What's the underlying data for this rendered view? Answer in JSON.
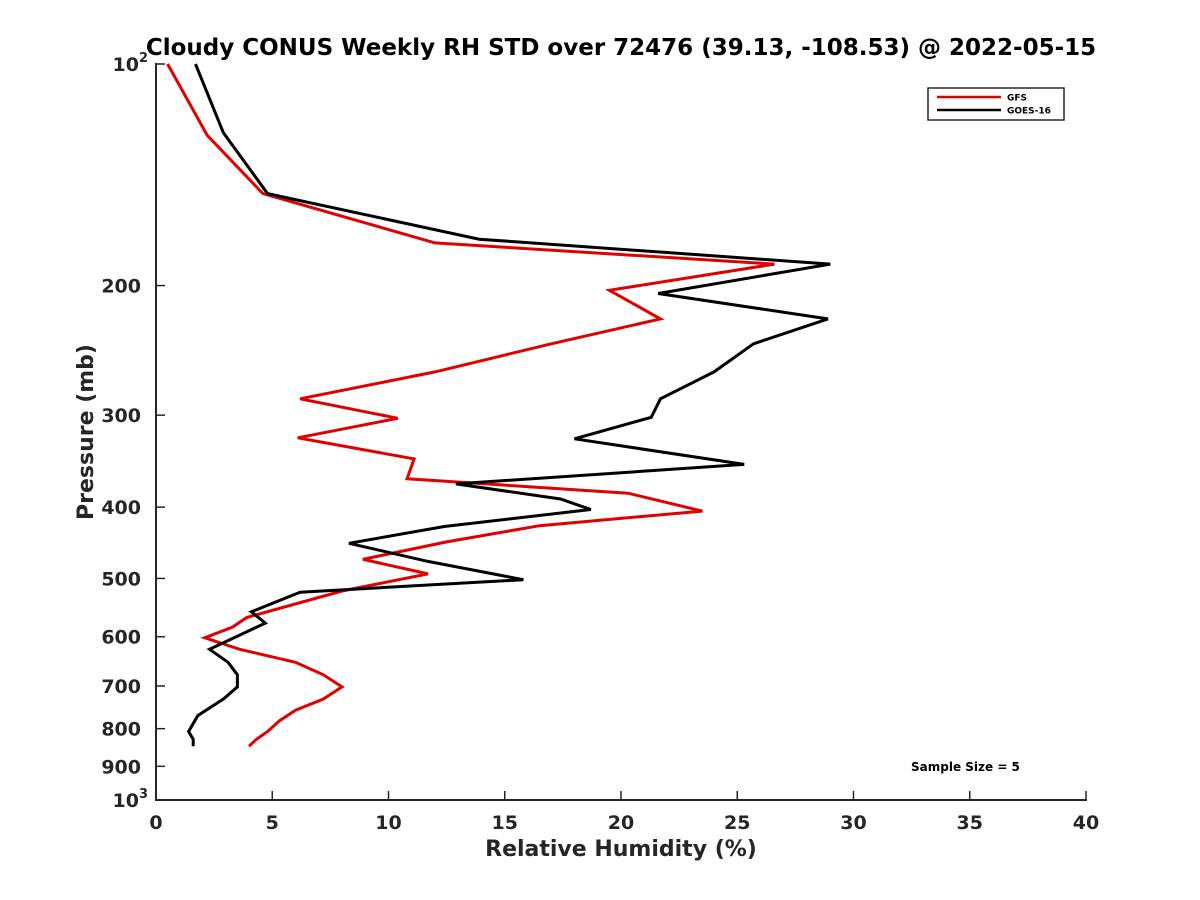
{
  "chart_data": {
    "type": "line",
    "title": "Cloudy CONUS Weekly RH STD over 72476 (39.13, -108.53) @ 2022-05-15",
    "xlabel": "Relative Humidity (%)",
    "ylabel": "Pressure (mb)",
    "xlim": [
      0,
      40
    ],
    "ylim": [
      100,
      1000
    ],
    "y_scale": "log",
    "y_reversed": true,
    "grid": false,
    "legend_position": "top-right",
    "x_ticks": [
      {
        "value": 0,
        "label": "0"
      },
      {
        "value": 5,
        "label": "5"
      },
      {
        "value": 10,
        "label": "10"
      },
      {
        "value": 15,
        "label": "15"
      },
      {
        "value": 20,
        "label": "20"
      },
      {
        "value": 25,
        "label": "25"
      },
      {
        "value": 30,
        "label": "30"
      },
      {
        "value": 35,
        "label": "35"
      },
      {
        "value": 40,
        "label": "40"
      }
    ],
    "y_ticks": [
      {
        "value": 100,
        "label_base": "10",
        "label_exp": "2"
      },
      {
        "value": 200,
        "label_base": "200",
        "label_exp": ""
      },
      {
        "value": 300,
        "label_base": "300",
        "label_exp": ""
      },
      {
        "value": 400,
        "label_base": "400",
        "label_exp": ""
      },
      {
        "value": 500,
        "label_base": "500",
        "label_exp": ""
      },
      {
        "value": 600,
        "label_base": "600",
        "label_exp": ""
      },
      {
        "value": 700,
        "label_base": "700",
        "label_exp": ""
      },
      {
        "value": 800,
        "label_base": "800",
        "label_exp": ""
      },
      {
        "value": 900,
        "label_base": "900",
        "label_exp": ""
      },
      {
        "value": 1000,
        "label_base": "10",
        "label_exp": "3"
      }
    ],
    "series": [
      {
        "name": "GFS",
        "color": "#e00000",
        "points": [
          [
            0.5,
            100
          ],
          [
            2.2,
            125
          ],
          [
            4.6,
            150
          ],
          [
            12.0,
            175
          ],
          [
            26.6,
            187
          ],
          [
            19.5,
            203
          ],
          [
            21.7,
            222
          ],
          [
            17.0,
            240
          ],
          [
            12.0,
            262
          ],
          [
            6.2,
            285
          ],
          [
            10.4,
            303
          ],
          [
            6.1,
            322
          ],
          [
            11.1,
            344
          ],
          [
            10.8,
            366
          ],
          [
            20.3,
            383
          ],
          [
            23.5,
            405
          ],
          [
            16.5,
            424
          ],
          [
            12.5,
            446
          ],
          [
            8.9,
            471
          ],
          [
            11.7,
            493
          ],
          [
            8.0,
            520
          ],
          [
            3.9,
            565
          ],
          [
            3.3,
            582
          ],
          [
            2.1,
            602
          ],
          [
            3.6,
            624
          ],
          [
            6.0,
            650
          ],
          [
            7.2,
            676
          ],
          [
            8.0,
            702
          ],
          [
            7.2,
            729
          ],
          [
            6.0,
            755
          ],
          [
            5.3,
            781
          ],
          [
            4.8,
            807
          ],
          [
            4.3,
            828
          ],
          [
            4.0,
            845
          ]
        ]
      },
      {
        "name": "GOES-16",
        "color": "#000000",
        "points": [
          [
            1.7,
            100
          ],
          [
            2.9,
            124
          ],
          [
            4.8,
            150
          ],
          [
            13.9,
            173
          ],
          [
            29.0,
            187
          ],
          [
            21.6,
            205
          ],
          [
            28.9,
            222
          ],
          [
            25.7,
            240
          ],
          [
            24.0,
            262
          ],
          [
            21.7,
            285
          ],
          [
            21.3,
            302
          ],
          [
            18.0,
            323
          ],
          [
            25.3,
            350
          ],
          [
            12.9,
            372
          ],
          [
            17.4,
            390
          ],
          [
            18.7,
            403
          ],
          [
            12.4,
            425
          ],
          [
            8.3,
            448
          ],
          [
            11.7,
            474
          ],
          [
            15.8,
            502
          ],
          [
            6.2,
            522
          ],
          [
            4.1,
            555
          ],
          [
            4.7,
            575
          ],
          [
            3.6,
            597
          ],
          [
            2.3,
            624
          ],
          [
            3.1,
            650
          ],
          [
            3.5,
            676
          ],
          [
            3.5,
            702
          ],
          [
            2.9,
            729
          ],
          [
            1.8,
            768
          ],
          [
            1.4,
            807
          ],
          [
            1.6,
            827
          ],
          [
            1.6,
            845
          ]
        ]
      }
    ],
    "legend": [
      {
        "label": "GFS",
        "color": "#e00000"
      },
      {
        "label": "GOES-16",
        "color": "#000000"
      }
    ],
    "annotations": [
      {
        "text": "Sample Size = 5"
      }
    ]
  }
}
